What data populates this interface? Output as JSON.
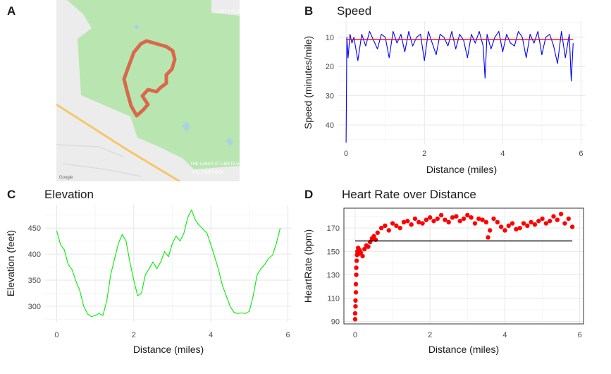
{
  "panels": {
    "a": {
      "letter": "A"
    },
    "b": {
      "letter": "B",
      "title": "Speed"
    },
    "c": {
      "letter": "C",
      "title": "Elevation"
    },
    "d": {
      "letter": "D",
      "title": "Heart Rate over Distance"
    }
  },
  "map": {
    "labels": [
      "LOST VALLEY",
      "THE LAKES AT UMSTEAD",
      "WILLOWBROOK",
      "Google"
    ],
    "colors": {
      "park": "#b9e6b0",
      "land": "#ececec",
      "route": "#d9694c",
      "road": "#f5c76a",
      "water": "#aad3df"
    }
  },
  "chart_data": [
    {
      "id": "speed",
      "type": "line",
      "title": "Speed",
      "xlabel": "Distance (miles)",
      "ylabel": "Speed (minutes/mile)",
      "xlim": [
        -0.2,
        6.1
      ],
      "ylim": [
        46.5,
        4.5
      ],
      "xticks": [
        0,
        2,
        4,
        6
      ],
      "yticks": [
        10,
        20,
        30,
        40
      ],
      "series": [
        {
          "name": "speed",
          "color": "#0000ff",
          "x": [
            0,
            0.02,
            0.05,
            0.1,
            0.15,
            0.2,
            0.3,
            0.4,
            0.5,
            0.6,
            0.7,
            0.8,
            0.9,
            1.0,
            1.1,
            1.2,
            1.3,
            1.4,
            1.5,
            1.6,
            1.7,
            1.8,
            1.9,
            2.0,
            2.1,
            2.2,
            2.3,
            2.4,
            2.5,
            2.6,
            2.7,
            2.8,
            2.9,
            3.0,
            3.1,
            3.2,
            3.3,
            3.4,
            3.5,
            3.55,
            3.6,
            3.7,
            3.8,
            3.9,
            4.0,
            4.1,
            4.2,
            4.3,
            4.4,
            4.5,
            4.6,
            4.7,
            4.8,
            4.9,
            5.0,
            5.1,
            5.2,
            5.3,
            5.4,
            5.5,
            5.6,
            5.7,
            5.75,
            5.8
          ],
          "y": [
            46,
            10,
            17,
            9,
            12,
            10,
            18,
            9,
            13,
            8,
            11,
            14,
            9,
            10,
            17,
            8,
            12,
            9,
            15,
            8,
            13,
            10,
            9,
            18,
            8,
            12,
            16,
            9,
            10,
            13,
            8,
            14,
            9,
            11,
            17,
            9,
            12,
            8,
            13,
            24,
            9,
            14,
            10,
            8,
            15,
            9,
            12,
            13,
            8,
            10,
            17,
            9,
            12,
            8,
            16,
            10,
            9,
            13,
            19,
            8,
            17,
            9,
            25,
            12
          ]
        },
        {
          "name": "mean",
          "color": "#ff0000",
          "x": [
            0,
            5.8
          ],
          "y": [
            10.8,
            10.8
          ]
        }
      ]
    },
    {
      "id": "elevation",
      "type": "line",
      "title": "Elevation",
      "xlabel": "Distance (miles)",
      "ylabel": "Elevation (feet)",
      "xlim": [
        -0.3,
        6.1
      ],
      "ylim": [
        270,
        495
      ],
      "xticks": [
        0,
        2,
        4,
        6
      ],
      "yticks": [
        300,
        350,
        400,
        450
      ],
      "series": [
        {
          "name": "elevation",
          "color": "#00ee00",
          "x": [
            0,
            0.1,
            0.2,
            0.3,
            0.4,
            0.5,
            0.6,
            0.7,
            0.8,
            0.9,
            1.0,
            1.1,
            1.2,
            1.3,
            1.4,
            1.5,
            1.6,
            1.7,
            1.8,
            1.9,
            2.0,
            2.1,
            2.2,
            2.3,
            2.4,
            2.5,
            2.6,
            2.7,
            2.8,
            2.9,
            3.0,
            3.1,
            3.2,
            3.3,
            3.4,
            3.5,
            3.6,
            3.7,
            3.8,
            3.9,
            4.0,
            4.1,
            4.2,
            4.3,
            4.4,
            4.5,
            4.6,
            4.7,
            4.8,
            4.9,
            5.0,
            5.1,
            5.2,
            5.3,
            5.4,
            5.5,
            5.6,
            5.7,
            5.8
          ],
          "y": [
            445,
            418,
            408,
            380,
            370,
            348,
            330,
            300,
            285,
            280,
            282,
            286,
            282,
            310,
            360,
            390,
            420,
            438,
            425,
            385,
            350,
            320,
            325,
            360,
            372,
            385,
            372,
            385,
            405,
            395,
            420,
            435,
            425,
            440,
            470,
            485,
            465,
            455,
            448,
            440,
            418,
            395,
            370,
            340,
            320,
            300,
            288,
            286,
            287,
            286,
            290,
            320,
            360,
            372,
            380,
            392,
            398,
            420,
            450
          ]
        }
      ]
    },
    {
      "id": "heart_rate",
      "type": "scatter",
      "title": "Heart Rate over Distance",
      "xlabel": "Distance (miles)",
      "ylabel": "HeartRate (bpm)",
      "xlim": [
        -0.3,
        6.1
      ],
      "ylim": [
        88,
        187
      ],
      "xticks": [
        0,
        2,
        4,
        6
      ],
      "yticks": [
        90,
        110,
        130,
        150,
        170
      ],
      "series": [
        {
          "name": "heart rate",
          "color": "#ff0000",
          "x": [
            0,
            0,
            0.01,
            0.01,
            0.02,
            0.02,
            0.03,
            0.03,
            0.04,
            0.05,
            0.06,
            0.08,
            0.1,
            0.12,
            0.15,
            0.2,
            0.25,
            0.3,
            0.35,
            0.4,
            0.45,
            0.5,
            0.55,
            0.6,
            0.7,
            0.8,
            0.9,
            1.0,
            1.1,
            1.2,
            1.3,
            1.4,
            1.5,
            1.6,
            1.7,
            1.8,
            1.9,
            2.0,
            2.1,
            2.2,
            2.3,
            2.4,
            2.5,
            2.6,
            2.7,
            2.8,
            2.9,
            3.0,
            3.1,
            3.2,
            3.3,
            3.4,
            3.5,
            3.55,
            3.6,
            3.7,
            3.8,
            3.9,
            4.0,
            4.1,
            4.2,
            4.3,
            4.4,
            4.5,
            4.6,
            4.7,
            4.8,
            4.9,
            5.0,
            5.1,
            5.2,
            5.3,
            5.4,
            5.5,
            5.6,
            5.7,
            5.8
          ],
          "y": [
            92,
            97,
            103,
            108,
            115,
            122,
            130,
            136,
            142,
            147,
            150,
            153,
            148,
            151,
            149,
            146,
            152,
            155,
            154,
            158,
            161,
            163,
            160,
            166,
            170,
            172,
            168,
            174,
            172,
            170,
            175,
            176,
            173,
            178,
            175,
            174,
            177,
            179,
            176,
            178,
            181,
            177,
            175,
            179,
            180,
            176,
            178,
            181,
            179,
            174,
            178,
            177,
            175,
            162,
            168,
            178,
            175,
            171,
            168,
            172,
            174,
            169,
            170,
            174,
            172,
            175,
            173,
            176,
            178,
            174,
            176,
            180,
            177,
            182,
            174,
            178,
            171
          ]
        },
        {
          "name": "mean",
          "color": "#000000",
          "x": [
            0,
            5.8
          ],
          "y": [
            159,
            159
          ]
        }
      ]
    }
  ]
}
